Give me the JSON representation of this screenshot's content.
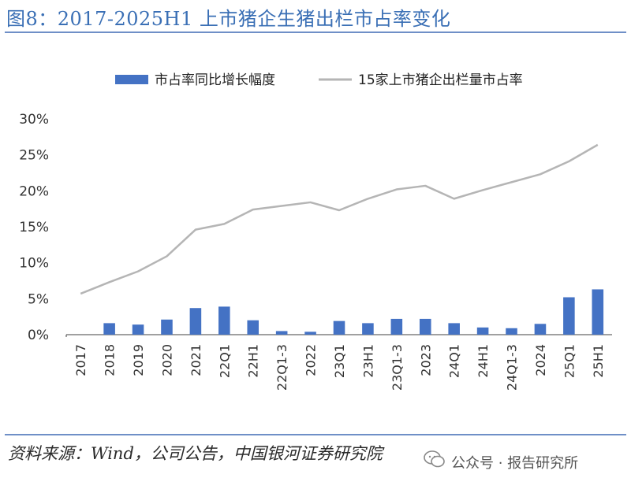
{
  "header": {
    "title": "图8：2017-2025H1 上市猪企生猪出栏市占率变化"
  },
  "source": {
    "text": "资料来源：Wind，公司公告，中国银河证券研究院"
  },
  "watermark": {
    "text": "公众号 · 报告研究所",
    "icon": "wechat-icon"
  },
  "colors": {
    "bar": "#4472c4",
    "line": "#b5b5b5",
    "title": "#3a6fb5",
    "axis": "#404040"
  },
  "chart_data": {
    "type": "bar",
    "categories": [
      "2017",
      "2018",
      "2019",
      "2020",
      "2021",
      "22Q1",
      "22H1",
      "22Q1-3",
      "2022",
      "23Q1",
      "23H1",
      "23Q1-3",
      "2023",
      "24Q1",
      "24H1",
      "24Q1-3",
      "2024",
      "25Q1",
      "25H1"
    ],
    "series": [
      {
        "name": "市占率同比增长幅度",
        "type": "bar",
        "values": [
          0,
          1.6,
          1.4,
          2.1,
          3.7,
          3.9,
          2.0,
          0.5,
          0.4,
          1.9,
          1.6,
          2.2,
          2.2,
          1.6,
          1.0,
          0.9,
          1.5,
          5.2,
          6.3
        ]
      },
      {
        "name": "15家上市猪企出栏量市占率",
        "type": "line",
        "values": [
          5.7,
          7.3,
          8.8,
          10.9,
          14.6,
          15.4,
          17.4,
          17.9,
          18.4,
          17.3,
          18.9,
          20.2,
          20.7,
          18.9,
          20.1,
          21.2,
          22.3,
          24.1,
          26.4
        ]
      }
    ],
    "yticks": [
      "0%",
      "5%",
      "10%",
      "15%",
      "20%",
      "25%",
      "30%"
    ],
    "ylim": [
      0,
      30
    ],
    "legend_position": "top-center",
    "grid": false
  }
}
